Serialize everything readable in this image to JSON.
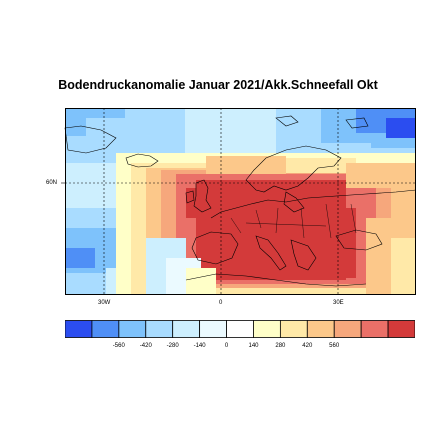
{
  "title": "Bodendruckanomalie Januar 2021/Akk.Schneefall Okt",
  "map": {
    "lat_label": "60N",
    "lon_labels": [
      "30W",
      "0",
      "30E"
    ],
    "grid": "dashed"
  },
  "legend": {
    "ticks": [
      "-560",
      "-420",
      "-280",
      "-140",
      "0",
      "140",
      "280",
      "420",
      "560"
    ],
    "colors": [
      "#2b4df0",
      "#4f8ff6",
      "#7ec2fb",
      "#a9dcff",
      "#cdeffe",
      "#ebfaff",
      "#ffffff",
      "#ffffc8",
      "#ffe9a8",
      "#fcc88a",
      "#f6a77c",
      "#ea7068",
      "#d33a3a"
    ]
  },
  "colors": {
    "strong_negative": "#2b4df0",
    "neutral": "#ffffff",
    "strong_positive": "#d33a3a"
  }
}
